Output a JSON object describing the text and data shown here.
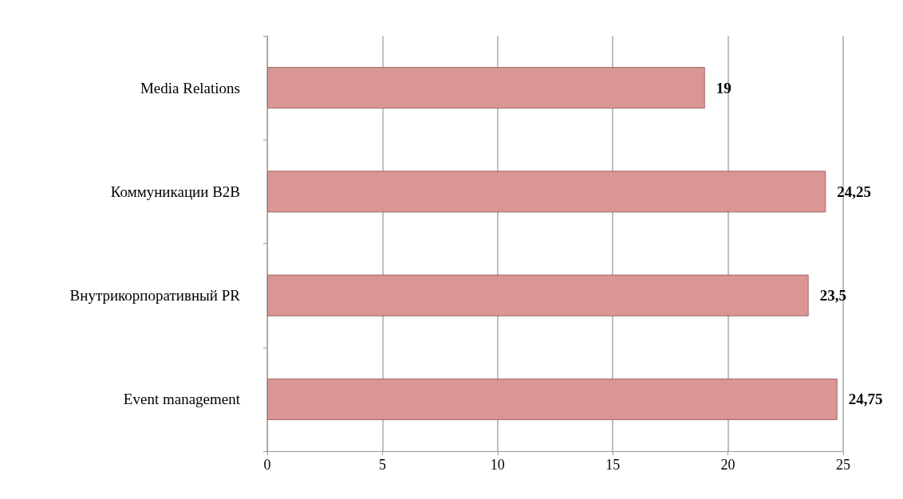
{
  "chart_data": {
    "type": "bar",
    "orientation": "horizontal",
    "categories": [
      "Media Relations",
      "Коммуникации B2B",
      "Внутрикорпоративный PR",
      "Event management"
    ],
    "values": [
      19,
      24.25,
      23.5,
      24.75
    ],
    "value_labels": [
      "19",
      "24,25",
      "23,5",
      "24,75"
    ],
    "color": "#d99694",
    "xlim": [
      0,
      25
    ],
    "xticks": [
      0,
      5,
      10,
      15,
      20,
      25
    ],
    "grid": "x"
  }
}
